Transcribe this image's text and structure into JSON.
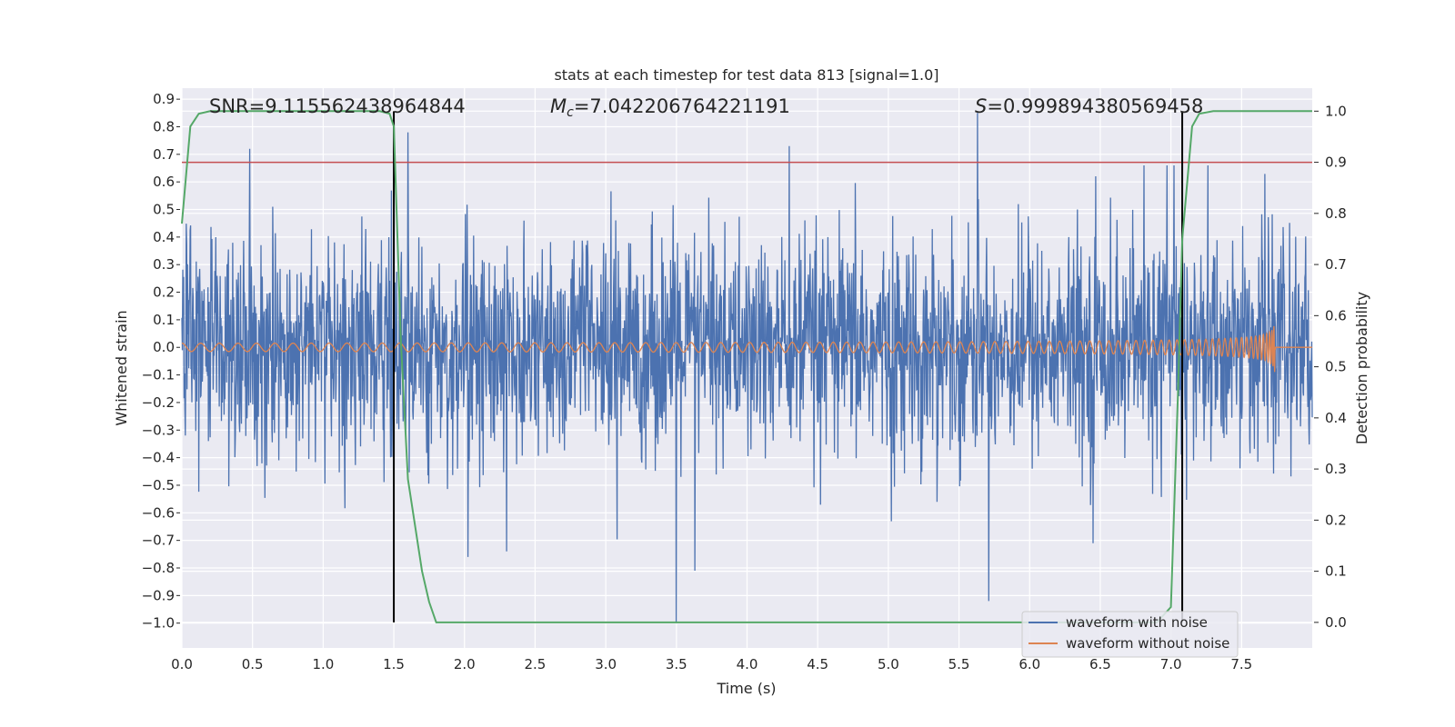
{
  "chart_data": {
    "type": "line",
    "title": "stats at each timestep for test data 813 [signal=1.0]",
    "xlabel": "Time (s)",
    "ylabel_left": "Whitened strain",
    "ylabel_right": "Detection probability",
    "xlim": [
      0.0,
      8.0
    ],
    "ylim_left": [
      -1.09,
      0.94
    ],
    "ylim_right": [
      -0.05,
      1.045
    ],
    "x_ticks": [
      "0.0",
      "0.5",
      "1.0",
      "1.5",
      "2.0",
      "2.5",
      "3.0",
      "3.5",
      "4.0",
      "4.5",
      "5.0",
      "5.5",
      "6.0",
      "6.5",
      "7.0",
      "7.5"
    ],
    "y_ticks_left": [
      "0.9",
      "0.8",
      "0.7",
      "0.6",
      "0.5",
      "0.4",
      "0.3",
      "0.2",
      "0.1",
      "0.0",
      "−0.1",
      "−0.2",
      "−0.3",
      "−0.4",
      "−0.5",
      "−0.6",
      "−0.7",
      "−0.8",
      "−0.9",
      "−1.0"
    ],
    "y_ticks_right": [
      "1.0",
      "0.9",
      "0.8",
      "0.7",
      "0.6",
      "0.5",
      "0.4",
      "0.3",
      "0.2",
      "0.1",
      "0.0"
    ],
    "grid": true,
    "legend_position": "lower-right",
    "annotations": {
      "snr": "SNR=9.115562438964844",
      "mc_symbol": "M",
      "mc_sub": "c",
      "mc_value": "=7.042206764221191",
      "s_symbol": "S",
      "s_value": "=0.999894380569458"
    },
    "series": [
      {
        "name": "waveform with noise",
        "color": "#4c72b0",
        "axis": "left",
        "description_range": [
          -1.0,
          0.85
        ],
        "peaks": [
          {
            "x": 0.48,
            "y": 0.72
          },
          {
            "x": 1.6,
            "y": 0.78
          },
          {
            "x": 4.3,
            "y": 0.73
          },
          {
            "x": 5.63,
            "y": 0.85
          },
          {
            "x": 3.5,
            "y": -1.0
          },
          {
            "x": 3.63,
            "y": -0.81
          },
          {
            "x": 2.3,
            "y": -0.74
          },
          {
            "x": 6.45,
            "y": -0.71
          }
        ]
      },
      {
        "name": "waveform without noise",
        "color": "#dd8452",
        "axis": "left",
        "envelope": {
          "start_amplitude": 0.015,
          "end_amplitude": 0.2,
          "merger_time": 7.74
        }
      },
      {
        "name": "detection probability",
        "color": "#55a868",
        "axis": "right",
        "x": [
          0.0,
          0.06,
          0.12,
          0.2,
          0.3,
          1.4,
          1.47,
          1.5,
          1.55,
          1.6,
          1.7,
          1.75,
          1.8,
          2.0,
          6.9,
          7.0,
          7.05,
          7.08,
          7.15,
          7.2,
          7.3,
          8.0
        ],
        "y": [
          0.78,
          0.97,
          0.995,
          1.0,
          1.0,
          1.0,
          0.995,
          0.97,
          0.55,
          0.28,
          0.1,
          0.04,
          0.0,
          0.0,
          0.0,
          0.03,
          0.45,
          0.75,
          0.97,
          0.995,
          1.0,
          1.0
        ]
      }
    ],
    "threshold_line": {
      "y": 0.9,
      "axis": "right",
      "color": "#c44e52"
    },
    "vertical_lines": [
      {
        "x": 1.5,
        "y_top": 1.0,
        "y_bottom": 0.0,
        "color": "#000000"
      },
      {
        "x": 7.08,
        "y_top": 1.0,
        "y_bottom": 0.0,
        "color": "#000000"
      }
    ],
    "colors": {
      "axes_background": "#eaeaf2",
      "grid": "#ffffff",
      "text": "#262626"
    }
  }
}
